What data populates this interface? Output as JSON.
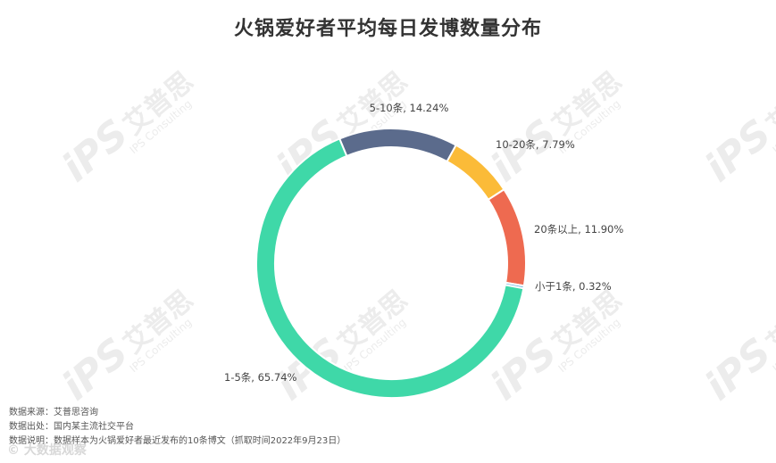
{
  "title": "火锅爱好者平均每日发博数量分布",
  "watermark": {
    "logo": "iPS",
    "name": "艾普思",
    "english": "IPS Consulting"
  },
  "chart_data": {
    "type": "pie",
    "style": "donut",
    "title": "火锅爱好者平均每日发博数量分布",
    "slices": [
      {
        "label": "5-10条, 14.24%",
        "name": "5-10条",
        "value": 14.24,
        "color": "#5b6b8c"
      },
      {
        "label": "10-20条, 7.79%",
        "name": "10-20条",
        "value": 7.79,
        "color": "#fbbb38"
      },
      {
        "label": "20条以上, 11.90%",
        "name": "20条以上",
        "value": 11.9,
        "color": "#ee6a50"
      },
      {
        "label": "小于1条, 0.32%",
        "name": "小于1条",
        "value": 0.32,
        "color": "#6cb4e0"
      },
      {
        "label": "1-5条, 65.74%",
        "name": "1-5条",
        "value": 65.74,
        "color": "#3fd8a8"
      }
    ]
  },
  "footer": {
    "source": "数据来源：艾普思咨询",
    "origin": "数据出处：国内某主流社交平台",
    "note": "数据说明：数据样本为火锅爱好者最近发布的10条博文（抓取时间2022年9月23日）"
  },
  "brand": "© 大数据观察"
}
